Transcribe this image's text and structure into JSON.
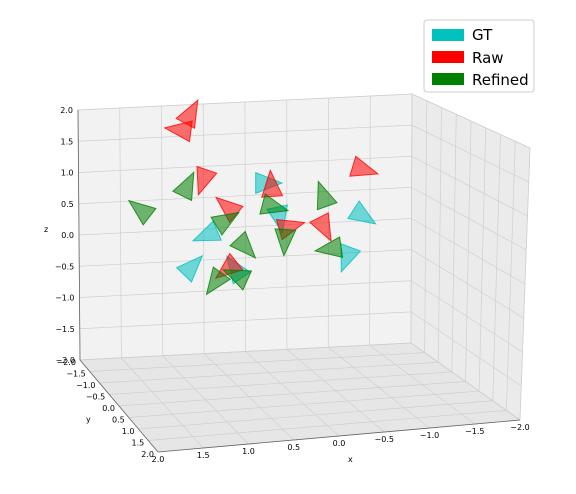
{
  "chart_data": {
    "type": "scatter",
    "title": "",
    "legend_position": "top-right",
    "legend": [
      {
        "label": "GT",
        "color": "#00c0c0"
      },
      {
        "label": "Raw",
        "color": "#ff0000"
      },
      {
        "label": "Refined",
        "color": "#008000"
      }
    ],
    "axes": {
      "x": {
        "label": "x",
        "ticks": [
          "2.0",
          "1.5",
          "1.0",
          "0.5",
          "0.0",
          "−0.5",
          "−1.0",
          "−1.5",
          "−2.0"
        ]
      },
      "y": {
        "label": "y",
        "ticks": [
          "−2.0",
          "−1.5",
          "−1.0",
          "−0.5",
          "0.0",
          "0.5",
          "1.0",
          "1.5",
          "2.0"
        ]
      },
      "z": {
        "label": "z",
        "ticks": [
          "−2.0",
          "−1.5",
          "−1.0",
          "−0.5",
          "0.0",
          "0.5",
          "1.0",
          "1.5",
          "2.0"
        ]
      }
    },
    "grid": true,
    "series": [
      {
        "name": "GT",
        "color": "#00c0c0",
        "cameras": [
          [
            0.55,
            0.26
          ],
          [
            0.6,
            0.38
          ],
          [
            0.4,
            0.46
          ],
          [
            0.48,
            0.62
          ],
          [
            0.33,
            0.61
          ],
          [
            0.84,
            0.38
          ],
          [
            0.81,
            0.54
          ]
        ]
      },
      {
        "name": "Raw",
        "color": "#ff0000",
        "cameras": [
          [
            0.38,
            0.23
          ],
          [
            0.32,
            0.05
          ],
          [
            0.58,
            0.29
          ],
          [
            0.62,
            0.44
          ],
          [
            0.73,
            0.42
          ],
          [
            0.46,
            0.59
          ],
          [
            0.46,
            0.37
          ],
          [
            0.33,
            0.0
          ],
          [
            0.84,
            0.2
          ]
        ]
      },
      {
        "name": "Refined",
        "color": "#008000",
        "cameras": [
          [
            0.2,
            0.38
          ],
          [
            0.32,
            0.29
          ],
          [
            0.57,
            0.35
          ],
          [
            0.62,
            0.47
          ],
          [
            0.77,
            0.52
          ],
          [
            0.74,
            0.33
          ],
          [
            0.43,
            0.42
          ],
          [
            0.49,
            0.5
          ],
          [
            0.42,
            0.64
          ],
          [
            0.49,
            0.64
          ]
        ]
      }
    ]
  }
}
